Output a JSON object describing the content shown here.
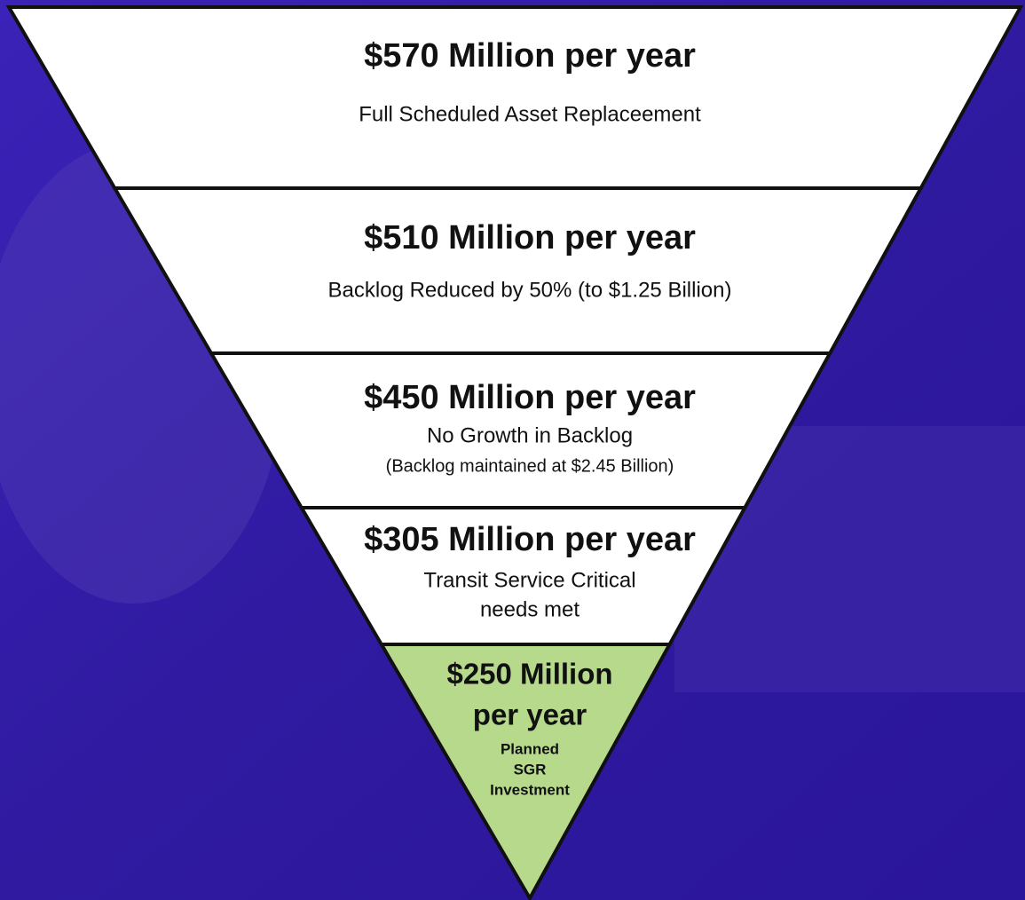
{
  "levels": [
    {
      "title": [
        "$570 Million per year"
      ],
      "description": [
        "Full Scheduled Asset Replaceement"
      ]
    },
    {
      "title": [
        "$510 Million per year"
      ],
      "description": [
        "Backlog Reduced by 50% (to $1.25 Billion)"
      ]
    },
    {
      "title": [
        "$450 Million per year"
      ],
      "description": [
        "No Growth in Backlog",
        "(Backlog maintained at $2.45 Billion)"
      ]
    },
    {
      "title": [
        "$305 Million per year"
      ],
      "description": [
        "Transit Service Critical",
        "needs met"
      ]
    },
    {
      "title": [
        "$250 Million",
        "per year"
      ],
      "description": [
        "Planned",
        "SGR",
        "Investment"
      ]
    }
  ]
}
